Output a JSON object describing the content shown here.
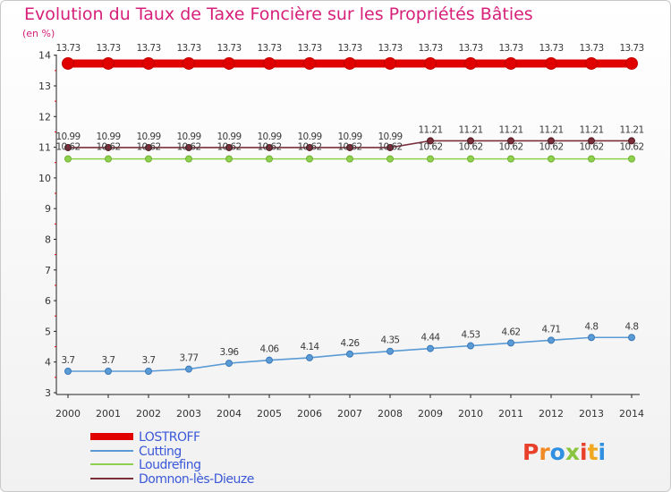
{
  "chart_data": {
    "type": "line",
    "title": "Evolution du Taux de Taxe Foncière sur les Propriétés Bâties",
    "ylabel": "(en %)",
    "xlabel": "",
    "categories": [
      "2000",
      "2001",
      "2002",
      "2003",
      "2004",
      "2005",
      "2006",
      "2007",
      "2008",
      "2009",
      "2010",
      "2011",
      "2012",
      "2013",
      "2014"
    ],
    "ylim": [
      3,
      14
    ],
    "yticks": [
      3,
      4,
      5,
      6,
      7,
      8,
      9,
      10,
      11,
      12,
      13,
      14
    ],
    "series": [
      {
        "name": "LOSTROFF",
        "color": "#e00000",
        "values": [
          13.73,
          13.73,
          13.73,
          13.73,
          13.73,
          13.73,
          13.73,
          13.73,
          13.73,
          13.73,
          13.73,
          13.73,
          13.73,
          13.73,
          13.73
        ],
        "labels": [
          "13.73",
          "13.73",
          "13.73",
          "13.73",
          "13.73",
          "13.73",
          "13.73",
          "13.73",
          "13.73",
          "13.73",
          "13.73",
          "13.73",
          "13.73",
          "13.73",
          "13.73"
        ]
      },
      {
        "name": "Cutting",
        "color": "#5b9bd5",
        "values": [
          3.7,
          3.7,
          3.7,
          3.77,
          3.96,
          4.06,
          4.14,
          4.26,
          4.35,
          4.44,
          4.53,
          4.62,
          4.71,
          4.8,
          4.8
        ],
        "labels": [
          "3.7",
          "3.7",
          "3.7",
          "3.77",
          "3.96",
          "4.06",
          "4.14",
          "4.26",
          "4.35",
          "4.44",
          "4.53",
          "4.62",
          "4.71",
          "4.8",
          "4.8"
        ]
      },
      {
        "name": "Loudrefing",
        "color": "#8fd14f",
        "values": [
          10.62,
          10.62,
          10.62,
          10.62,
          10.62,
          10.62,
          10.62,
          10.62,
          10.62,
          10.62,
          10.62,
          10.62,
          10.62,
          10.62,
          10.62
        ],
        "labels": [
          "10.62",
          "10.62",
          "10.62",
          "10.62",
          "10.62",
          "10.62",
          "10.62",
          "10.62",
          "10.62",
          "10.62",
          "10.62",
          "10.62",
          "10.62",
          "10.62",
          "10.62"
        ]
      },
      {
        "name": "Domnon-lès-Dieuze",
        "color": "#7a2e3a",
        "values": [
          10.99,
          10.99,
          10.99,
          10.99,
          10.99,
          10.99,
          10.99,
          10.99,
          10.99,
          11.21,
          11.21,
          11.21,
          11.21,
          11.21,
          11.21
        ],
        "labels": [
          "10.99",
          "10.99",
          "10.99",
          "10.99",
          "10.99",
          "10.99",
          "10.99",
          "10.99",
          "10.99",
          "11.21",
          "11.21",
          "11.21",
          "11.21",
          "11.21",
          "11.21"
        ]
      }
    ],
    "legend_position": "bottom-left",
    "grid": false
  },
  "logo": {
    "letters": [
      "P",
      "r",
      "o",
      "x",
      "i",
      "t",
      "i"
    ],
    "colors": [
      "#e8402a",
      "#f08a24",
      "#2f8fe0",
      "#8bc53f",
      "#e8402a",
      "#f0a820",
      "#2f8fe0"
    ]
  }
}
